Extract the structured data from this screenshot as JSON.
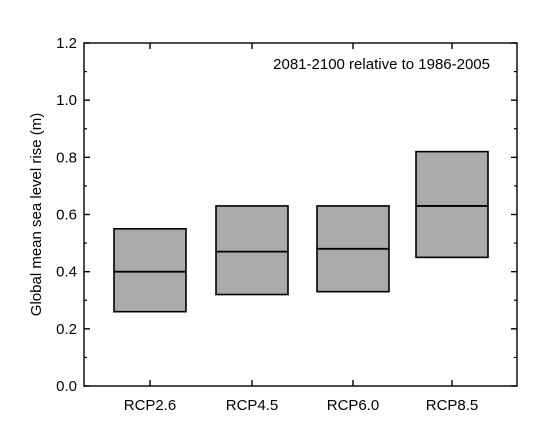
{
  "chart_data": {
    "type": "bar",
    "subtype": "range-box",
    "annotation": "2081-2100 relative to 1986-2005",
    "ylabel": "Global mean sea level rise (m)",
    "xlabel": "",
    "ylim": [
      0,
      1.2
    ],
    "yticks": [
      "0.0",
      "0.2",
      "0.4",
      "0.6",
      "0.8",
      "1.0",
      "1.2"
    ],
    "y_tick_values": [
      0.0,
      0.2,
      0.4,
      0.6,
      0.8,
      1.0,
      1.2
    ],
    "categories": [
      "RCP2.6",
      "RCP4.5",
      "RCP6.0",
      "RCP8.5"
    ],
    "series": [
      {
        "low": [
          0.26,
          0.32,
          0.33,
          0.45
        ],
        "median": [
          0.4,
          0.47,
          0.48,
          0.63
        ],
        "high": [
          0.55,
          0.63,
          0.63,
          0.82
        ]
      }
    ],
    "grid": false,
    "box_fill": "#aaaaaa",
    "box_stroke": "#000000"
  }
}
